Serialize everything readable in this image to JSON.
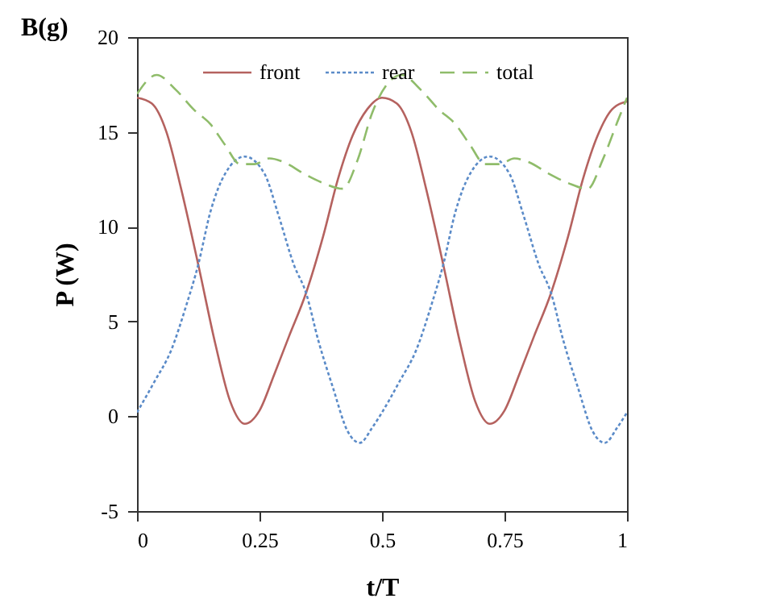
{
  "chart_data": {
    "type": "line",
    "xlabel": "t/T",
    "ylabel": "P (W)",
    "annotations": [
      "B(g)"
    ],
    "xlim": [
      0,
      1
    ],
    "xticks": [
      0,
      0.25,
      0.5,
      0.75,
      1
    ],
    "ylim": [
      -5,
      20
    ],
    "yticks": [
      -5,
      0,
      5,
      10,
      15,
      20
    ],
    "grid": false,
    "legend": "top",
    "marker": "none",
    "series": [
      {
        "name": "front",
        "color": "#b5625f",
        "line_style": "solid",
        "x": [
          0,
          0.03,
          0.06,
          0.09,
          0.125,
          0.16,
          0.19,
          0.22,
          0.25,
          0.28,
          0.31,
          0.345,
          0.38,
          0.41,
          0.44,
          0.47,
          0.5,
          0.53,
          0.56,
          0.59,
          0.625,
          0.66,
          0.69,
          0.72,
          0.75,
          0.78,
          0.81,
          0.845,
          0.88,
          0.91,
          0.94,
          0.97,
          1
        ],
        "values": [
          16.8,
          16.5,
          15,
          12,
          8,
          3.8,
          0.8,
          -0.4,
          0.3,
          2.2,
          4.2,
          6.5,
          9.5,
          12.5,
          14.8,
          16.2,
          16.8,
          16.5,
          15,
          12,
          8,
          3.8,
          0.8,
          -0.4,
          0.3,
          2.2,
          4.2,
          6.5,
          9.5,
          12.5,
          14.8,
          16.2,
          16.6
        ]
      },
      {
        "name": "rear",
        "color": "#5b8bc8",
        "line_style": "dotted",
        "x": [
          0,
          0.035,
          0.07,
          0.1,
          0.125,
          0.15,
          0.18,
          0.22,
          0.26,
          0.29,
          0.32,
          0.345,
          0.37,
          0.4,
          0.43,
          0.455,
          0.48,
          0.5,
          0.535,
          0.57,
          0.6,
          0.625,
          0.65,
          0.68,
          0.72,
          0.76,
          0.79,
          0.82,
          0.845,
          0.87,
          0.9,
          0.93,
          0.955,
          0.98,
          1
        ],
        "values": [
          0.2,
          1.8,
          3.5,
          5.8,
          8,
          10.8,
          12.8,
          13.7,
          12.8,
          10.5,
          8,
          6.5,
          4,
          1.5,
          -0.8,
          -1.4,
          -0.6,
          0.2,
          1.8,
          3.5,
          5.8,
          8,
          10.8,
          12.8,
          13.7,
          12.8,
          10.5,
          8,
          6.5,
          4,
          1.5,
          -0.8,
          -1.4,
          -0.6,
          0.2
        ]
      },
      {
        "name": "total",
        "color": "#8fbc6a",
        "line_style": "dashed",
        "x": [
          0,
          0.04,
          0.08,
          0.115,
          0.15,
          0.18,
          0.21,
          0.24,
          0.27,
          0.3,
          0.34,
          0.38,
          0.42,
          0.45,
          0.48,
          0.51,
          0.54,
          0.58,
          0.615,
          0.65,
          0.68,
          0.71,
          0.74,
          0.77,
          0.8,
          0.84,
          0.88,
          0.92,
          0.95,
          0.98,
          1
        ],
        "values": [
          17,
          18,
          17.2,
          16.2,
          15.4,
          14.3,
          13.3,
          13.3,
          13.6,
          13.4,
          12.8,
          12.3,
          12,
          13.5,
          16,
          17.5,
          18,
          17.2,
          16.2,
          15.4,
          14.3,
          13.3,
          13.3,
          13.6,
          13.4,
          12.8,
          12.3,
          12,
          13.5,
          15.5,
          16.8
        ]
      }
    ]
  }
}
